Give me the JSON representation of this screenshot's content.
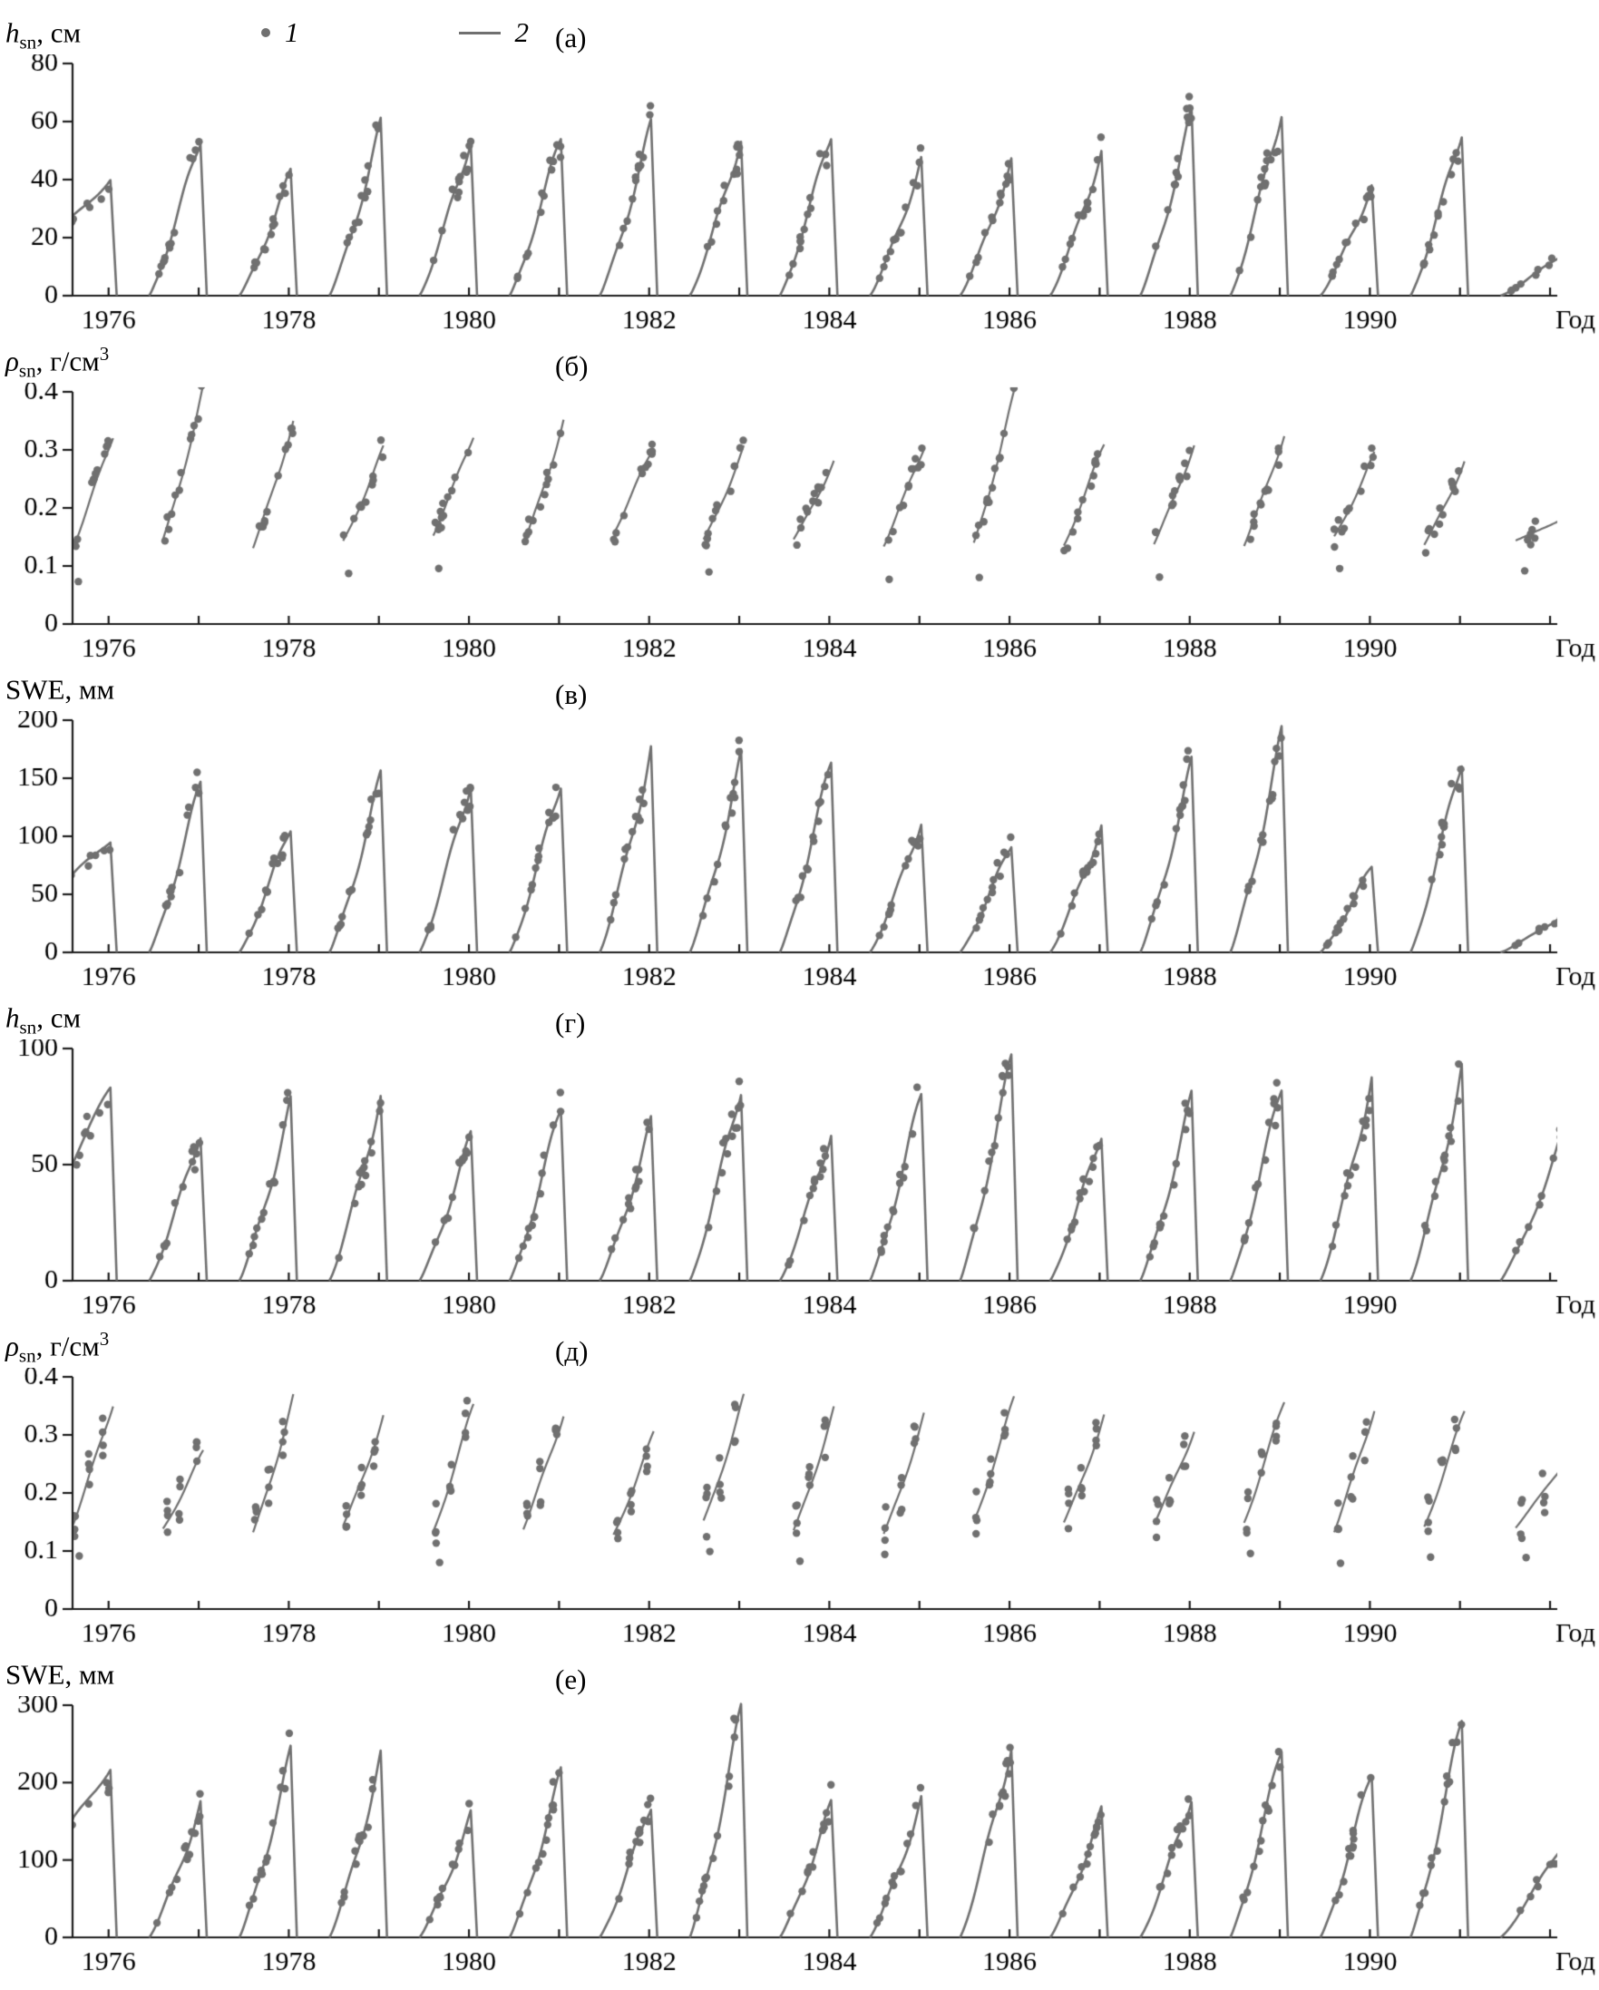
{
  "figure": {
    "legend": {
      "marker_label": "1",
      "line_label": "2"
    },
    "xaxis": {
      "labels": [
        1976,
        1978,
        1980,
        1982,
        1984,
        1986,
        1988,
        1990
      ],
      "end_label": "Год",
      "min": 1975.6,
      "max": 1992.08,
      "minor_tick_every": 1
    },
    "colors": {
      "data": "#707070",
      "axis": "#1c1c1c",
      "text": "#000000"
    }
  },
  "chart_data": [
    {
      "panel_label": "(а)",
      "type": "line+scatter",
      "style": "snow",
      "dot_pattern": "along",
      "ylabel": {
        "main": "h",
        "italic": true,
        "sub": "sn",
        "rest": ", см",
        "sup": ""
      },
      "ylim": [
        0,
        80
      ],
      "yticks": [
        0,
        20,
        40,
        60,
        80
      ],
      "seasons": [
        {
          "y": 1976,
          "p": 42,
          "s": -1.3
        },
        {
          "y": 1977,
          "p": 55
        },
        {
          "y": 1978,
          "p": 42
        },
        {
          "y": 1979,
          "p": 58
        },
        {
          "y": 1980,
          "p": 55
        },
        {
          "y": 1981,
          "p": 55
        },
        {
          "y": 1982,
          "p": 58
        },
        {
          "y": 1983,
          "p": 55
        },
        {
          "y": 1984,
          "p": 57
        },
        {
          "y": 1985,
          "p": 46
        },
        {
          "y": 1986,
          "p": 46
        },
        {
          "y": 1987,
          "p": 50
        },
        {
          "y": 1988,
          "p": 62
        },
        {
          "y": 1989,
          "p": 65
        },
        {
          "y": 1990,
          "p": 38
        },
        {
          "y": 1991,
          "p": 58
        },
        {
          "y": 1992,
          "p": 20,
          "r": 1,
          "t": 0.35
        }
      ]
    },
    {
      "panel_label": "(б)",
      "type": "line+scatter",
      "style": "density",
      "dot_pattern": "along",
      "ylabel": {
        "main": "ρ",
        "italic": true,
        "sub": "sn",
        "rest": ", г/см",
        "sup": "3"
      },
      "ylim": [
        0,
        0.4
      ],
      "yticks": [
        0,
        0.1,
        0.2,
        0.3,
        0.4
      ],
      "seasons": [
        {
          "y": 1976,
          "p": 0.33
        },
        {
          "y": 1977,
          "p": 0.4
        },
        {
          "y": 1978,
          "p": 0.35
        },
        {
          "y": 1979,
          "p": 0.3
        },
        {
          "y": 1980,
          "p": 0.33
        },
        {
          "y": 1981,
          "p": 0.35
        },
        {
          "y": 1982,
          "p": 0.31
        },
        {
          "y": 1983,
          "p": 0.3
        },
        {
          "y": 1984,
          "p": 0.28
        },
        {
          "y": 1985,
          "p": 0.31
        },
        {
          "y": 1986,
          "p": 0.39
        },
        {
          "y": 1987,
          "p": 0.31
        },
        {
          "y": 1988,
          "p": 0.31
        },
        {
          "y": 1989,
          "p": 0.33
        },
        {
          "y": 1990,
          "p": 0.29
        },
        {
          "y": 1991,
          "p": 0.28
        },
        {
          "y": 1992,
          "p": 0.2,
          "r": 1,
          "t": 0.35
        }
      ]
    },
    {
      "panel_label": "(в)",
      "type": "line+scatter",
      "style": "snow",
      "dot_pattern": "along",
      "ylabel": {
        "main": "SWE",
        "italic": false,
        "sub": "",
        "rest": ", мм",
        "sup": ""
      },
      "ylim": [
        0,
        200
      ],
      "yticks": [
        0,
        50,
        100,
        150,
        200
      ],
      "seasons": [
        {
          "y": 1976,
          "p": 100,
          "s": -1.3
        },
        {
          "y": 1977,
          "p": 145
        },
        {
          "y": 1978,
          "p": 110
        },
        {
          "y": 1979,
          "p": 150
        },
        {
          "y": 1980,
          "p": 150
        },
        {
          "y": 1981,
          "p": 150
        },
        {
          "y": 1982,
          "p": 175
        },
        {
          "y": 1983,
          "p": 165
        },
        {
          "y": 1984,
          "p": 165
        },
        {
          "y": 1985,
          "p": 115
        },
        {
          "y": 1986,
          "p": 95
        },
        {
          "y": 1987,
          "p": 110
        },
        {
          "y": 1988,
          "p": 160
        },
        {
          "y": 1989,
          "p": 185
        },
        {
          "y": 1990,
          "p": 75
        },
        {
          "y": 1991,
          "p": 170
        },
        {
          "y": 1992,
          "p": 45,
          "r": 1,
          "t": 0.35
        }
      ]
    },
    {
      "panel_label": "(г)",
      "type": "line+scatter",
      "style": "snow",
      "dot_pattern": "along",
      "ylabel": {
        "main": "h",
        "italic": true,
        "sub": "sn",
        "rest": ", см",
        "sup": ""
      },
      "ylim": [
        0,
        100
      ],
      "yticks": [
        0,
        50,
        100
      ],
      "seasons": [
        {
          "y": 1976,
          "p": 80,
          "s": -1.3
        },
        {
          "y": 1977,
          "p": 65
        },
        {
          "y": 1978,
          "p": 75
        },
        {
          "y": 1979,
          "p": 80
        },
        {
          "y": 1980,
          "p": 62
        },
        {
          "y": 1981,
          "p": 75
        },
        {
          "y": 1982,
          "p": 67
        },
        {
          "y": 1983,
          "p": 85
        },
        {
          "y": 1984,
          "p": 65
        },
        {
          "y": 1985,
          "p": 80
        },
        {
          "y": 1986,
          "p": 95
        },
        {
          "y": 1987,
          "p": 65
        },
        {
          "y": 1988,
          "p": 78
        },
        {
          "y": 1989,
          "p": 85
        },
        {
          "y": 1990,
          "p": 88
        },
        {
          "y": 1991,
          "p": 90
        },
        {
          "y": 1992,
          "p": 85,
          "r": 1,
          "t": 0.35
        }
      ]
    },
    {
      "panel_label": "(д)",
      "type": "line+scatter",
      "style": "density",
      "dot_pattern": "clusters",
      "ylabel": {
        "main": "ρ",
        "italic": true,
        "sub": "sn",
        "rest": ", г/см",
        "sup": "3"
      },
      "ylim": [
        0,
        0.4
      ],
      "yticks": [
        0,
        0.1,
        0.2,
        0.3,
        0.4
      ],
      "seasons": [
        {
          "y": 1976,
          "p": 0.36
        },
        {
          "y": 1977,
          "p": 0.27
        },
        {
          "y": 1978,
          "p": 0.36
        },
        {
          "y": 1979,
          "p": 0.33
        },
        {
          "y": 1980,
          "p": 0.35
        },
        {
          "y": 1981,
          "p": 0.34
        },
        {
          "y": 1982,
          "p": 0.3
        },
        {
          "y": 1983,
          "p": 0.36
        },
        {
          "y": 1984,
          "p": 0.34
        },
        {
          "y": 1985,
          "p": 0.33
        },
        {
          "y": 1986,
          "p": 0.36
        },
        {
          "y": 1987,
          "p": 0.33
        },
        {
          "y": 1988,
          "p": 0.31
        },
        {
          "y": 1989,
          "p": 0.36
        },
        {
          "y": 1990,
          "p": 0.35
        },
        {
          "y": 1991,
          "p": 0.34
        },
        {
          "y": 1992,
          "p": 0.3,
          "r": 1,
          "t": 0.35
        }
      ]
    },
    {
      "panel_label": "(е)",
      "type": "line+scatter",
      "style": "snow",
      "dot_pattern": "along",
      "ylabel": {
        "main": "SWE",
        "italic": false,
        "sub": "",
        "rest": ", мм",
        "sup": ""
      },
      "ylim": [
        0,
        300
      ],
      "yticks": [
        0,
        100,
        200,
        300
      ],
      "seasons": [
        {
          "y": 1976,
          "p": 230,
          "s": -1.3
        },
        {
          "y": 1977,
          "p": 170
        },
        {
          "y": 1978,
          "p": 235
        },
        {
          "y": 1979,
          "p": 230
        },
        {
          "y": 1980,
          "p": 155
        },
        {
          "y": 1981,
          "p": 210
        },
        {
          "y": 1982,
          "p": 175
        },
        {
          "y": 1983,
          "p": 290
        },
        {
          "y": 1984,
          "p": 170
        },
        {
          "y": 1985,
          "p": 175
        },
        {
          "y": 1986,
          "p": 250
        },
        {
          "y": 1987,
          "p": 160
        },
        {
          "y": 1988,
          "p": 185
        },
        {
          "y": 1989,
          "p": 245
        },
        {
          "y": 1990,
          "p": 215
        },
        {
          "y": 1991,
          "p": 280
        },
        {
          "y": 1992,
          "p": 170,
          "r": 1,
          "t": 0.35
        }
      ]
    }
  ]
}
